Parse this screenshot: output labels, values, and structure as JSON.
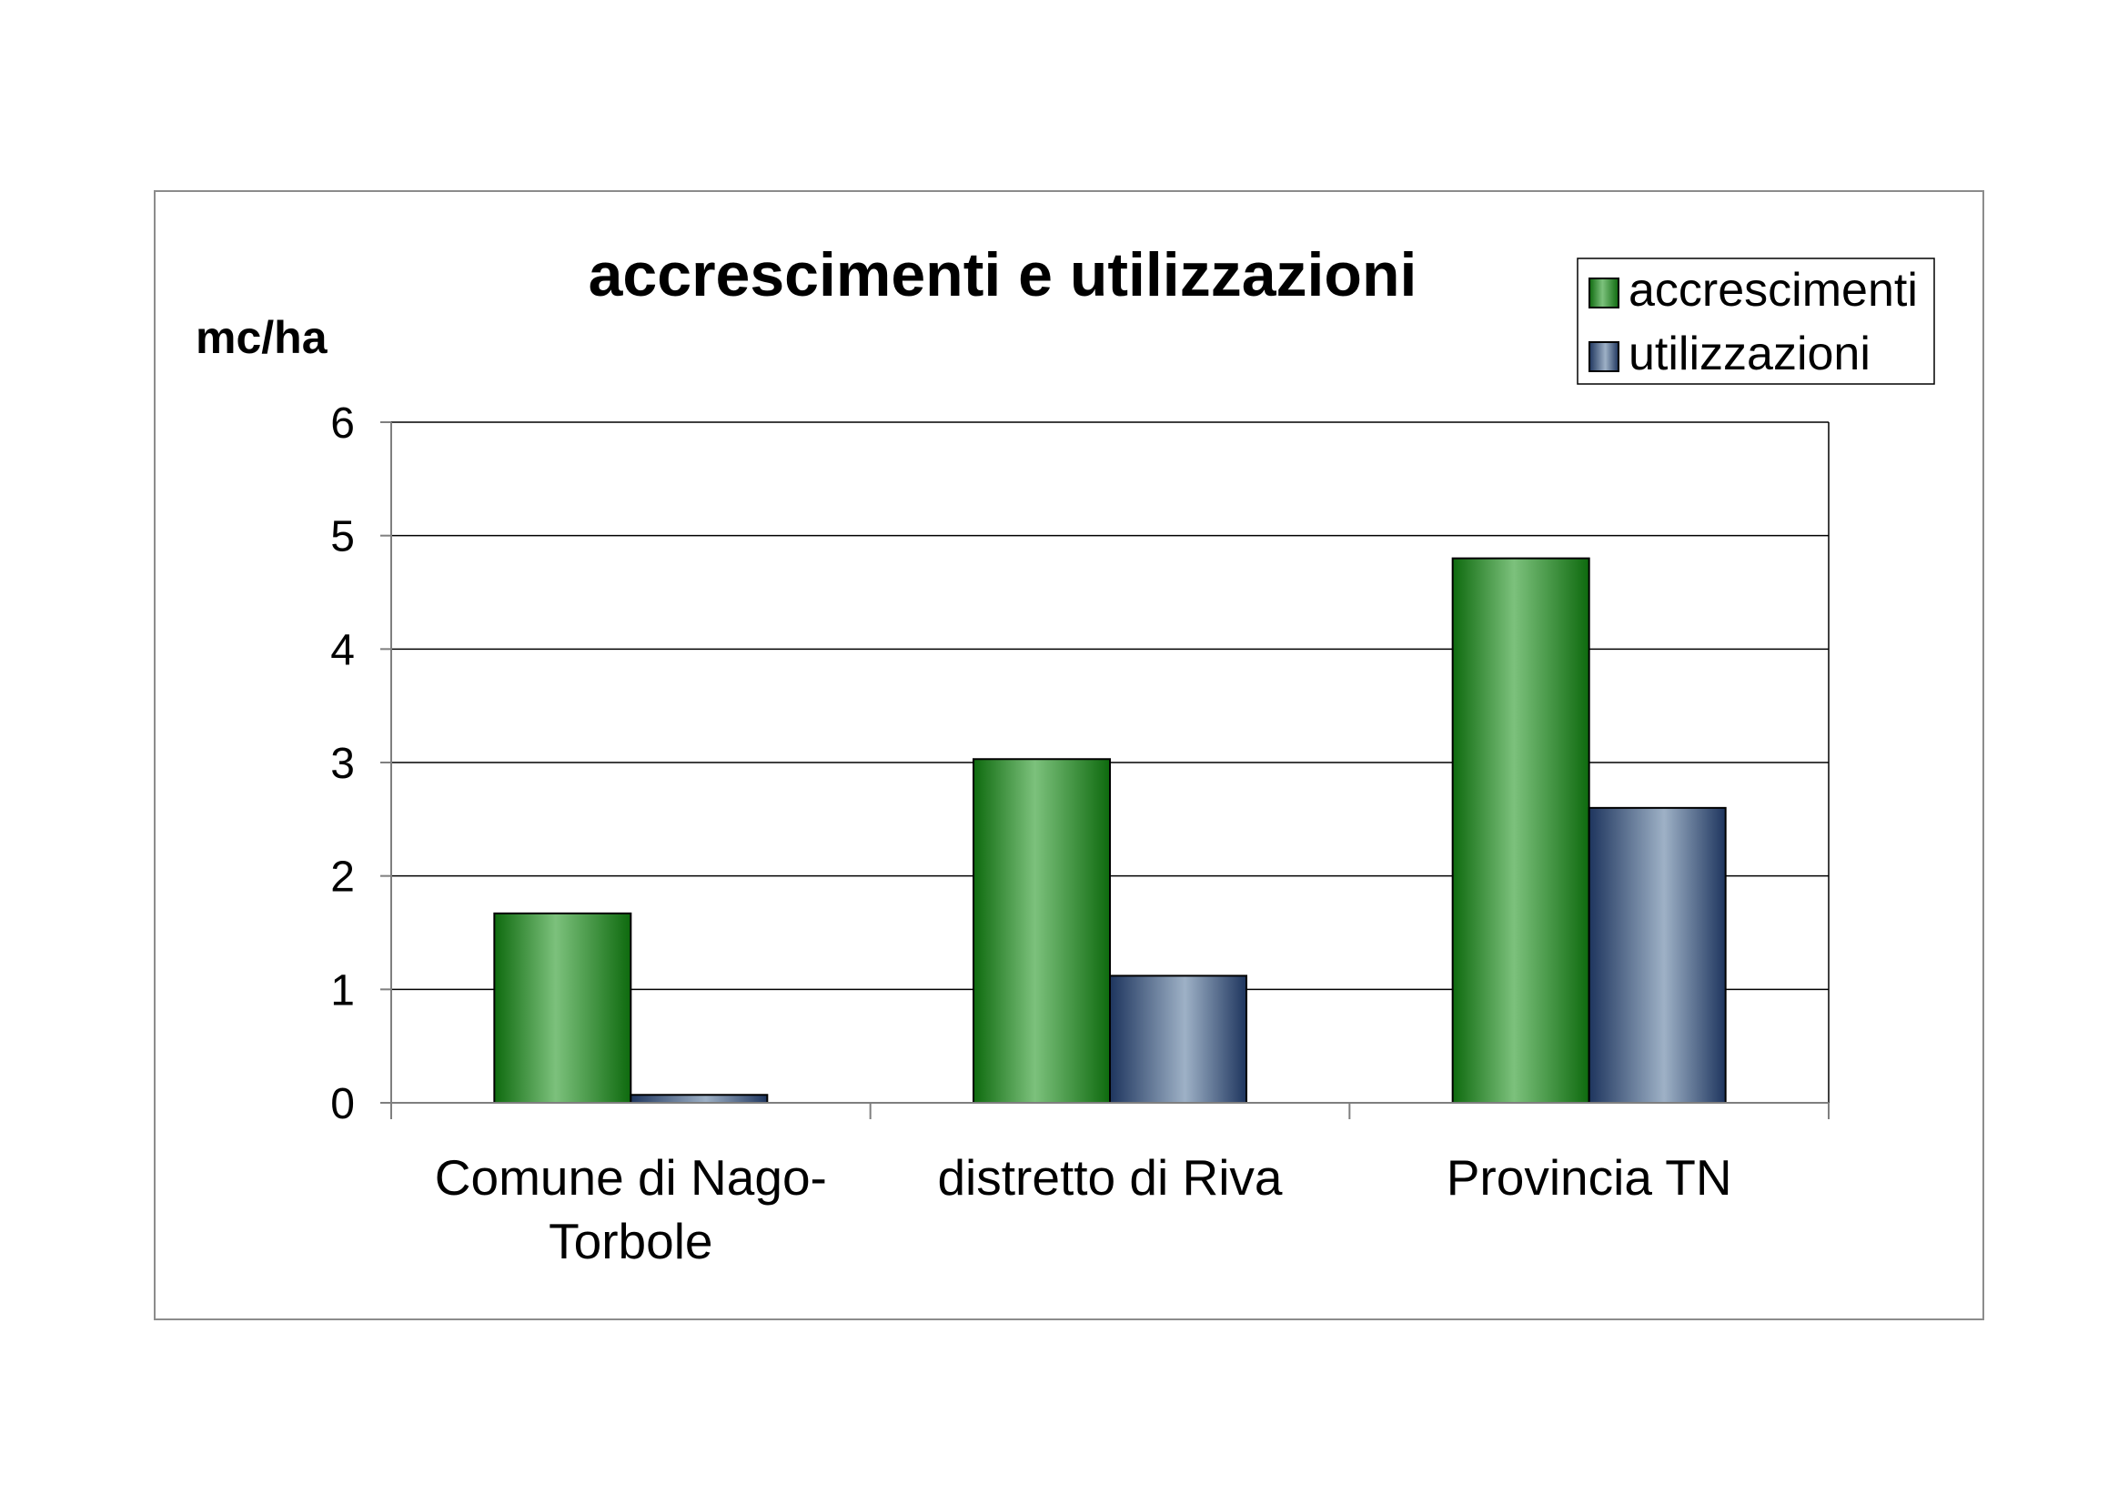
{
  "chart_data": {
    "type": "bar",
    "title": "accrescimenti e utilizzazioni",
    "ylabel": "mc/ha",
    "xlabel": "",
    "ylim": [
      0,
      6
    ],
    "yticks": [
      0,
      1,
      2,
      3,
      4,
      5,
      6
    ],
    "grid": true,
    "legend_position": "top-right",
    "categories": [
      [
        "Comune di Nago-",
        "Torbole"
      ],
      [
        "distretto di Riva"
      ],
      [
        "Provincia TN"
      ]
    ],
    "series": [
      {
        "name": "accrescimenti",
        "values": [
          1.67,
          3.03,
          4.8
        ],
        "color": "#2e8b2e",
        "color_light": "#7cc17c",
        "color_dark": "#0e6a0e"
      },
      {
        "name": "utilizzazioni",
        "values": [
          0.07,
          1.12,
          2.6
        ],
        "color": "#5a7494",
        "color_light": "#9eb1c6",
        "color_dark": "#1e355e"
      }
    ]
  }
}
